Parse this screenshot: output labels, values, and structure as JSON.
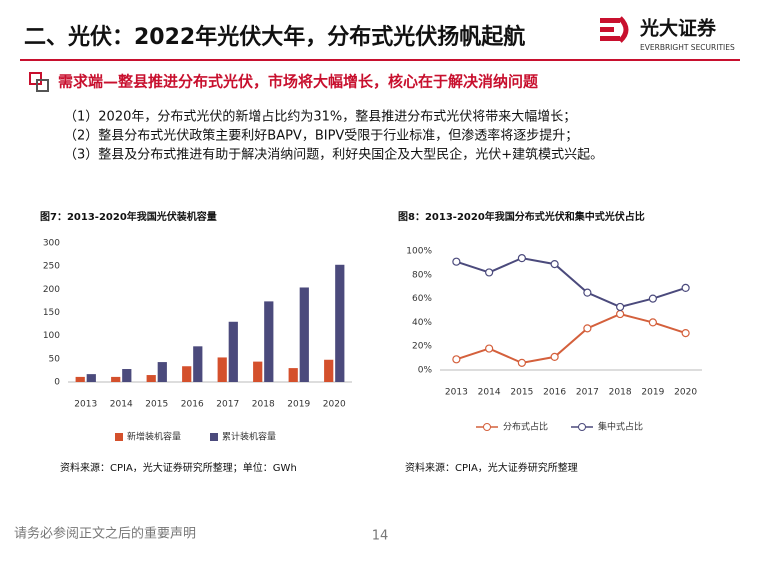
{
  "header": {
    "title": "二、光伏：2022年光伏大年，分布式光伏扬帆起航",
    "logo_name": "光大证券",
    "logo_sub": "EVERBRIGHT SECURITIES"
  },
  "subheading": "需求端—整县推进分布式光伏，市场将大幅增长，核心在于解决消纳问题",
  "bullets": [
    "（1）2020年，分布式光伏的新增占比约为31%，整县推进分布式光伏将带来大幅增长；",
    "（2）整县分布式光伏政策主要利好BAPV，BIPV受限于行业标准，但渗透率将逐步提升；",
    "（3）整县及分布式推进有助于解决消纳问题，利好央国企及大型民企，光伏+建筑模式兴起。"
  ],
  "chart_data": [
    {
      "type": "bar",
      "title": "图7：2013-2020年我国光伏装机容量",
      "categories": [
        "2013",
        "2014",
        "2015",
        "2016",
        "2017",
        "2018",
        "2019",
        "2020"
      ],
      "series": [
        {
          "name": "新增装机容量",
          "color": "#d4502c",
          "values": [
            11,
            11,
            15,
            34,
            53,
            44,
            30,
            48
          ]
        },
        {
          "name": "累计装机容量",
          "color": "#4b4a7c",
          "values": [
            17,
            28,
            43,
            77,
            130,
            174,
            204,
            253
          ]
        }
      ],
      "ylim": [
        0,
        300
      ],
      "yticks": [
        0,
        50,
        100,
        150,
        200,
        250,
        300
      ],
      "grid": false,
      "legend": "bottom",
      "source": "资料来源：CPIA，光大证券研究所整理；单位：GWh"
    },
    {
      "type": "line",
      "title": "图8：2013-2020年我国分布式光伏和集中式光伏占比",
      "categories": [
        "2013",
        "2014",
        "2015",
        "2016",
        "2017",
        "2018",
        "2019",
        "2020"
      ],
      "series": [
        {
          "name": "分布式占比",
          "color": "#d4603c",
          "values": [
            9,
            18,
            6,
            11,
            35,
            47,
            40,
            31
          ]
        },
        {
          "name": "集中式占比",
          "color": "#4b4a7c",
          "values": [
            91,
            82,
            94,
            89,
            65,
            53,
            60,
            69
          ]
        }
      ],
      "ylim": [
        0,
        100
      ],
      "yticks": [
        {
          "value": 0,
          "label": "0%"
        },
        {
          "value": 20,
          "label": "20%"
        },
        {
          "value": 40,
          "label": "40%"
        },
        {
          "value": 60,
          "label": "60%"
        },
        {
          "value": 80,
          "label": "80%"
        },
        {
          "value": 100,
          "label": "100%"
        }
      ],
      "grid": false,
      "legend": "bottom",
      "source": "资料来源：CPIA，光大证券研究所整理"
    }
  ],
  "footer": {
    "disclaimer": "请务必参阅正文之后的重要声明",
    "page": "14"
  }
}
